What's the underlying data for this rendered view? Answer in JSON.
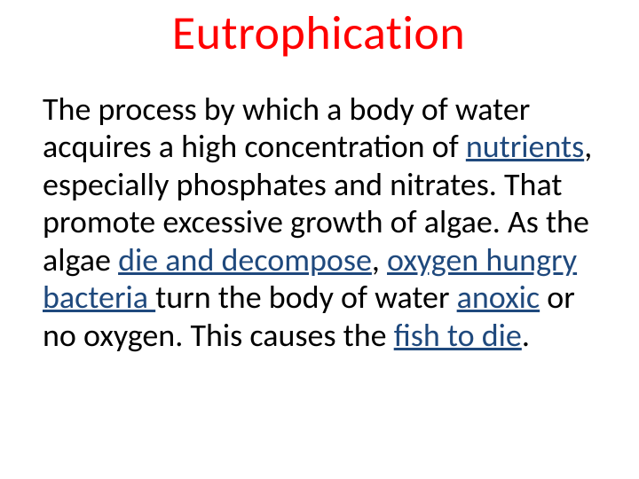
{
  "slide": {
    "title": "Eutrophication",
    "title_color": "#ff0000",
    "title_fontsize": 54,
    "body_fontsize": 36,
    "body_color": "#000000",
    "link_color": "#1f497d",
    "background_color": "#ffffff",
    "segments": [
      {
        "text": "The process by which a body of water acquires a high concentration of ",
        "link": false
      },
      {
        "text": "nutrients",
        "link": true
      },
      {
        "text": ", especially phosphates and nitrates. That promote excessive growth of algae. As the algae ",
        "link": false
      },
      {
        "text": "die and decompose",
        "link": true
      },
      {
        "text": ", ",
        "link": false
      },
      {
        "text": "oxygen hungry bacteria ",
        "link": true
      },
      {
        "text": "turn the body of water ",
        "link": false
      },
      {
        "text": "anoxic",
        "link": true
      },
      {
        "text": " or no oxygen. This causes the ",
        "link": false
      },
      {
        "text": "fish to die",
        "link": true
      },
      {
        "text": ".",
        "link": false
      }
    ]
  }
}
